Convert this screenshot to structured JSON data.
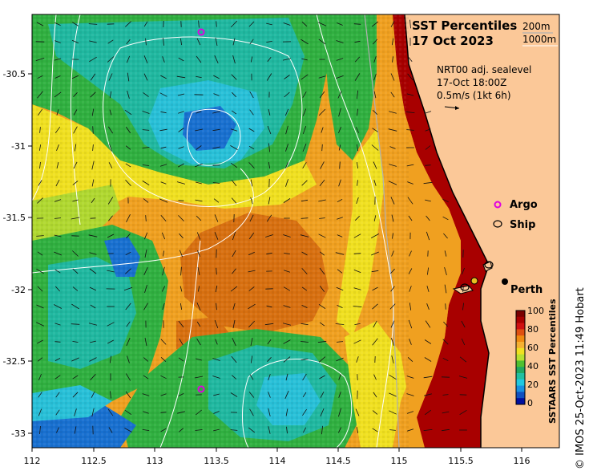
{
  "map": {
    "title_line1": "SST Percentiles",
    "title_line2": "17 Oct 2023",
    "contour_legend": [
      "200m",
      "1000m"
    ],
    "current_info": [
      "NRT00 adj. sealevel",
      "17-Oct 18:00Z",
      "0.5m/s (1kt 6h)"
    ],
    "legend": {
      "argo_label": "Argo",
      "ship_label": "Ship",
      "argo_color": "#e000e0"
    },
    "place_label": "Perth",
    "colorbar": {
      "title": "SSTAARS SST Percentiles",
      "ticks": [
        "100",
        "80",
        "60",
        "40",
        "20",
        "0"
      ],
      "colors": [
        "#7a0000",
        "#a80000",
        "#d01010",
        "#e05010",
        "#f08a10",
        "#f5b030",
        "#f0e020",
        "#b8e030",
        "#50c030",
        "#20a860",
        "#20c0a0",
        "#20c8e0",
        "#1890e0",
        "#1050c0",
        "#0010a0"
      ]
    },
    "x_ticks": [
      "112",
      "112.5",
      "113",
      "113.5",
      "114",
      "114.5",
      "115",
      "115.5",
      "116"
    ],
    "y_ticks": [
      "-30.5",
      "-31",
      "-31.5",
      "-32",
      "-32.5",
      "-33"
    ],
    "credit": "© IMOS 25-Oct-2023 11:49 Hobart",
    "colors": {
      "land": "#fbc898",
      "deep_red": "#a80000",
      "orange": "#f0a020",
      "dark_orange": "#d87010",
      "yellow": "#f0e020",
      "lime": "#b0d830",
      "green": "#30b040",
      "teal": "#20b8a0",
      "cyan": "#28c0d8",
      "blue": "#1870d0"
    }
  }
}
